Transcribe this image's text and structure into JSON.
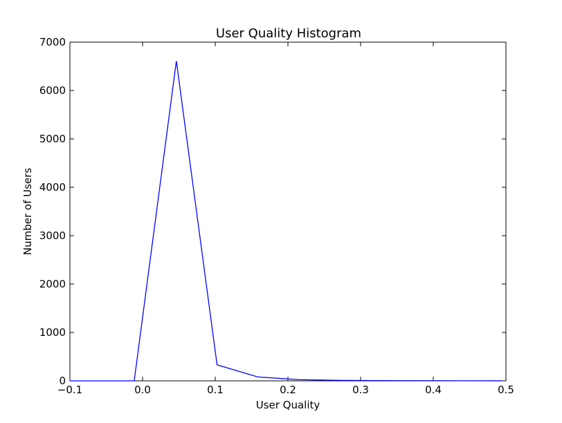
{
  "chart_data": {
    "type": "line",
    "title": "User Quality Histogram",
    "xlabel": "User Quality",
    "ylabel": "Number of Users",
    "xlim": [
      -0.1,
      0.5
    ],
    "ylim": [
      0,
      7000
    ],
    "x_ticks": [
      -0.1,
      0.0,
      0.1,
      0.2,
      0.3,
      0.4,
      0.5
    ],
    "x_tick_labels": [
      "−0.1",
      "0.0",
      "0.1",
      "0.2",
      "0.3",
      "0.4",
      "0.5"
    ],
    "y_ticks": [
      0,
      1000,
      2000,
      3000,
      4000,
      5000,
      6000,
      7000
    ],
    "y_tick_labels": [
      "0",
      "1000",
      "2000",
      "3000",
      "4000",
      "5000",
      "6000",
      "7000"
    ],
    "grid": false,
    "series": [
      {
        "color": "#0000ff",
        "x": [
          -0.1,
          -0.0115,
          0.0465,
          0.1025,
          0.1585,
          0.2145,
          0.2705,
          0.3265,
          0.3825,
          0.4385,
          0.4945
        ],
        "y": [
          0,
          0,
          6610,
          330,
          80,
          25,
          10,
          5,
          3,
          2,
          1
        ]
      }
    ]
  }
}
